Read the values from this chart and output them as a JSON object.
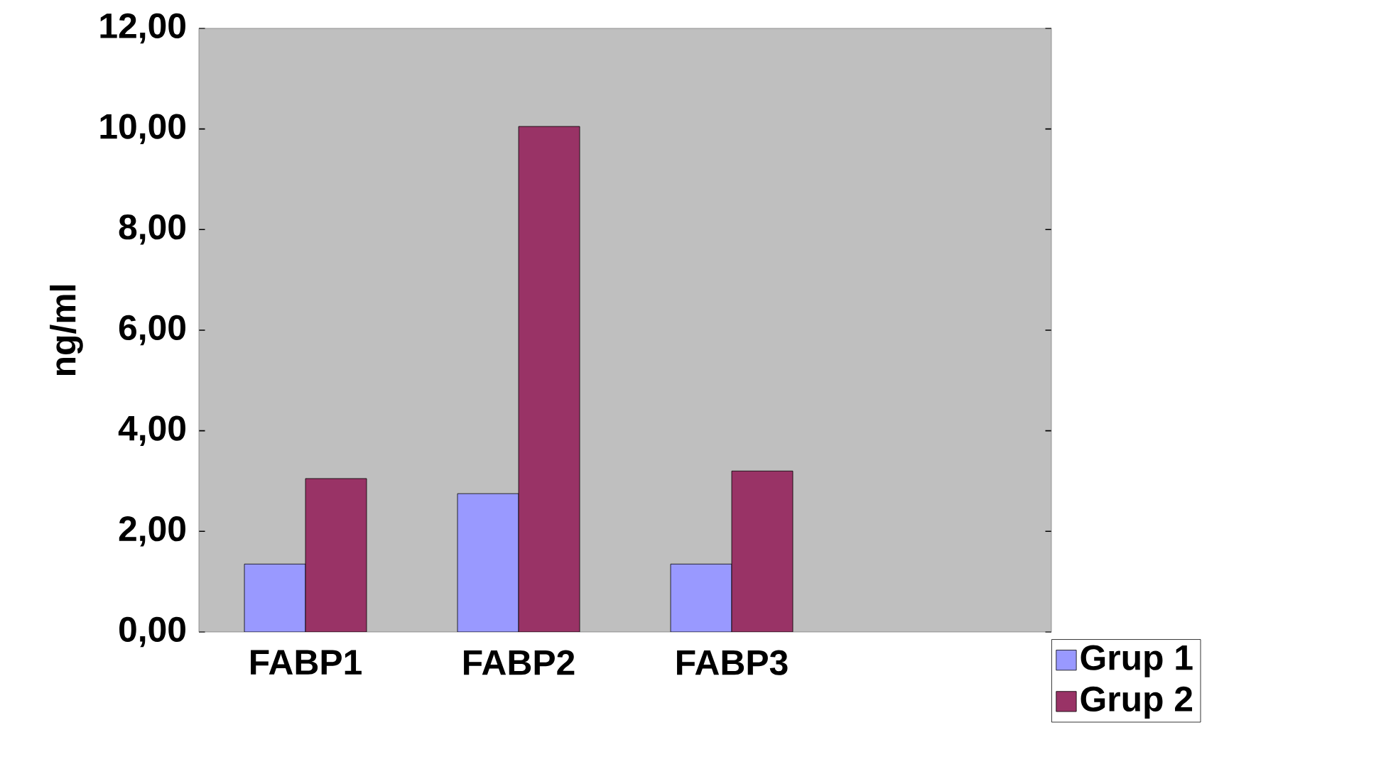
{
  "chart_data": {
    "type": "bar",
    "ylabel": "ng/ml",
    "categories": [
      "FABP1",
      "FABP2",
      "FABP3",
      null
    ],
    "series": [
      {
        "name": "Grup 1",
        "color": "#9999ff",
        "values": [
          1.35,
          2.75,
          1.35,
          null
        ]
      },
      {
        "name": "Grup 2",
        "color": "#993366",
        "values": [
          3.05,
          10.05,
          3.2,
          null
        ]
      }
    ],
    "ylim": [
      0,
      12
    ],
    "yticks": [
      {
        "value": 0,
        "label": "0,00"
      },
      {
        "value": 2,
        "label": "2,00"
      },
      {
        "value": 4,
        "label": "4,00"
      },
      {
        "value": 6,
        "label": "6,00"
      },
      {
        "value": 8,
        "label": "8,00"
      },
      {
        "value": 10,
        "label": "10,00"
      },
      {
        "value": 12,
        "label": "12,00"
      }
    ],
    "grid": false,
    "legend": "bottom right"
  }
}
